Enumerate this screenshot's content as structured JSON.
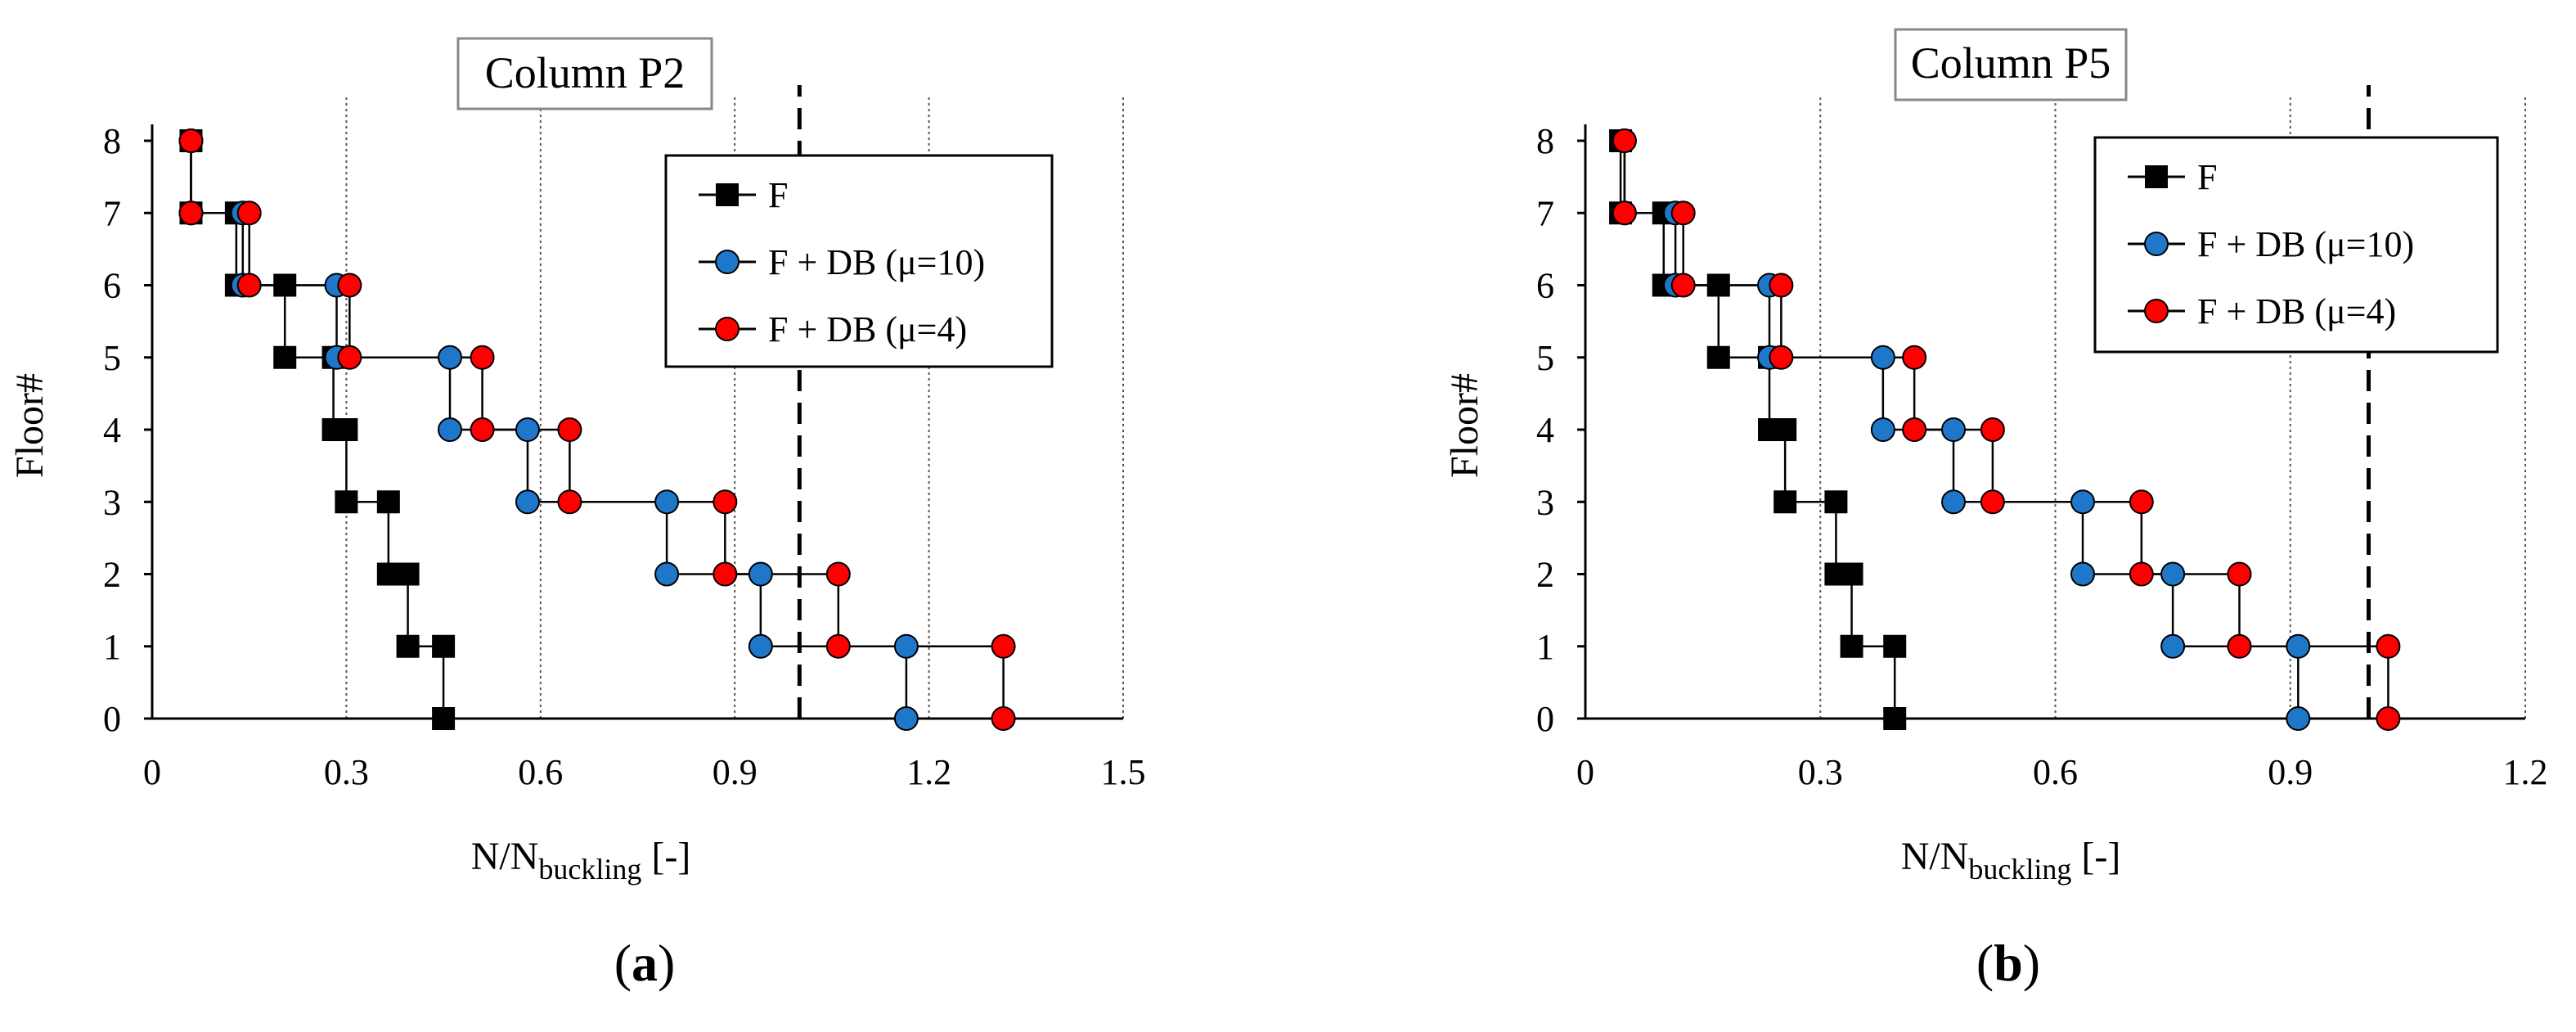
{
  "chart_data": [
    {
      "type": "line",
      "title": "Column P2",
      "panel_label": "(a)",
      "xlabel": {
        "main": "N/N",
        "sub": "buckling",
        "unit": "[-]"
      },
      "ylabel": "Floor#",
      "xlim": [
        0,
        1.5
      ],
      "ylim": [
        0,
        8
      ],
      "x_ticks": [
        "0",
        "0.3",
        "0.6",
        "0.9",
        "1.2",
        "1.5"
      ],
      "x_tick_values": [
        0,
        0.3,
        0.6,
        0.9,
        1.2,
        1.5
      ],
      "y_ticks": [
        "0",
        "1",
        "2",
        "3",
        "4",
        "5",
        "6",
        "7",
        "8"
      ],
      "y_tick_values": [
        0,
        1,
        2,
        3,
        4,
        5,
        6,
        7,
        8
      ],
      "gridlines_x": [
        0.3,
        0.6,
        0.9,
        1.2,
        1.5
      ],
      "reference_line_x": 1.0,
      "legend_position": "top-right",
      "series": [
        {
          "name": "F",
          "color": "#000000",
          "marker": "square",
          "points": [
            [
              0.45,
              0
            ],
            [
              0.45,
              1
            ],
            [
              0.395,
              1
            ],
            [
              0.395,
              2
            ],
            [
              0.365,
              2
            ],
            [
              0.365,
              3
            ],
            [
              0.3,
              3
            ],
            [
              0.3,
              4
            ],
            [
              0.28,
              4
            ],
            [
              0.28,
              5
            ],
            [
              0.205,
              5
            ],
            [
              0.205,
              6
            ],
            [
              0.13,
              6
            ],
            [
              0.13,
              7
            ],
            [
              0.06,
              7
            ],
            [
              0.06,
              8
            ]
          ]
        },
        {
          "name": "F + DB (μ=10)",
          "color": "#1f77c9",
          "marker": "circle",
          "points": [
            [
              1.165,
              0
            ],
            [
              1.165,
              1
            ],
            [
              0.94,
              1
            ],
            [
              0.94,
              2
            ],
            [
              0.795,
              2
            ],
            [
              0.795,
              3
            ],
            [
              0.58,
              3
            ],
            [
              0.58,
              4
            ],
            [
              0.46,
              4
            ],
            [
              0.46,
              5
            ],
            [
              0.285,
              5
            ],
            [
              0.285,
              6
            ],
            [
              0.14,
              6
            ],
            [
              0.14,
              7
            ],
            [
              0.06,
              7
            ],
            [
              0.06,
              8
            ]
          ]
        },
        {
          "name": "F + DB (μ=4)",
          "color": "#ff0000",
          "marker": "circle",
          "points": [
            [
              1.315,
              0
            ],
            [
              1.315,
              1
            ],
            [
              1.06,
              1
            ],
            [
              1.06,
              2
            ],
            [
              0.885,
              2
            ],
            [
              0.885,
              3
            ],
            [
              0.645,
              3
            ],
            [
              0.645,
              4
            ],
            [
              0.51,
              4
            ],
            [
              0.51,
              5
            ],
            [
              0.305,
              5
            ],
            [
              0.305,
              6
            ],
            [
              0.15,
              6
            ],
            [
              0.15,
              7
            ],
            [
              0.06,
              7
            ],
            [
              0.06,
              8
            ]
          ]
        }
      ]
    },
    {
      "type": "line",
      "title": "Column P5",
      "panel_label": "(b)",
      "xlabel": {
        "main": "N/N",
        "sub": "buckling",
        "unit": "[-]"
      },
      "ylabel": "Floor#",
      "xlim": [
        0,
        1.2
      ],
      "ylim": [
        0,
        8
      ],
      "x_ticks": [
        "0",
        "0.3",
        "0.6",
        "0.9",
        "1.2"
      ],
      "x_tick_values": [
        0,
        0.3,
        0.6,
        0.9,
        1.2
      ],
      "y_ticks": [
        "0",
        "1",
        "2",
        "3",
        "4",
        "5",
        "6",
        "7",
        "8"
      ],
      "y_tick_values": [
        0,
        1,
        2,
        3,
        4,
        5,
        6,
        7,
        8
      ],
      "gridlines_x": [
        0.3,
        0.6,
        0.9,
        1.2
      ],
      "reference_line_x": 1.0,
      "legend_position": "top-right",
      "series": [
        {
          "name": "F",
          "color": "#000000",
          "marker": "square",
          "points": [
            [
              0.395,
              0
            ],
            [
              0.395,
              1
            ],
            [
              0.34,
              1
            ],
            [
              0.34,
              2
            ],
            [
              0.32,
              2
            ],
            [
              0.32,
              3
            ],
            [
              0.255,
              3
            ],
            [
              0.255,
              4
            ],
            [
              0.235,
              4
            ],
            [
              0.235,
              5
            ],
            [
              0.17,
              5
            ],
            [
              0.17,
              6
            ],
            [
              0.1,
              6
            ],
            [
              0.1,
              7
            ],
            [
              0.045,
              7
            ],
            [
              0.045,
              8
            ]
          ]
        },
        {
          "name": "F + DB (μ=10)",
          "color": "#1f77c9",
          "marker": "circle",
          "points": [
            [
              0.91,
              0
            ],
            [
              0.91,
              1
            ],
            [
              0.75,
              1
            ],
            [
              0.75,
              2
            ],
            [
              0.635,
              2
            ],
            [
              0.635,
              3
            ],
            [
              0.47,
              3
            ],
            [
              0.47,
              4
            ],
            [
              0.38,
              4
            ],
            [
              0.38,
              5
            ],
            [
              0.235,
              5
            ],
            [
              0.235,
              6
            ],
            [
              0.115,
              6
            ],
            [
              0.115,
              7
            ],
            [
              0.05,
              7
            ],
            [
              0.05,
              8
            ]
          ]
        },
        {
          "name": "F + DB (μ=4)",
          "color": "#ff0000",
          "marker": "circle",
          "points": [
            [
              1.025,
              0
            ],
            [
              1.025,
              1
            ],
            [
              0.835,
              1
            ],
            [
              0.835,
              2
            ],
            [
              0.71,
              2
            ],
            [
              0.71,
              3
            ],
            [
              0.52,
              3
            ],
            [
              0.52,
              4
            ],
            [
              0.42,
              4
            ],
            [
              0.42,
              5
            ],
            [
              0.25,
              5
            ],
            [
              0.25,
              6
            ],
            [
              0.125,
              6
            ],
            [
              0.125,
              7
            ],
            [
              0.05,
              7
            ],
            [
              0.05,
              8
            ]
          ]
        }
      ]
    }
  ]
}
